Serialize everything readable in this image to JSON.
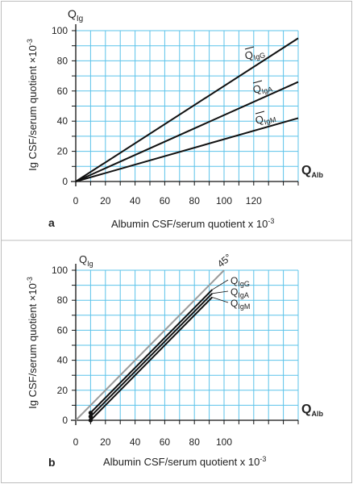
{
  "colors": {
    "grid": "#5bc3ea",
    "line": "#111111",
    "reference": "#9a9a9a",
    "frame": "#bdbdbd"
  },
  "chart_data": [
    {
      "panel": "a",
      "type": "line",
      "y_corner_label": "Q",
      "y_corner_sub": "Ig",
      "ylabel": "Ig CSF/serum quotient  ×10",
      "ylabel_exp": "-3",
      "xlabel": "Albumin CSF/serum quotient  x 10",
      "xlabel_exp": "-3",
      "x_axis_tag": "Q",
      "x_axis_tag_sub": "Alb",
      "xlim": [
        0,
        150
      ],
      "ylim": [
        0,
        100
      ],
      "x_ticks": [
        0,
        20,
        40,
        60,
        80,
        100,
        120
      ],
      "y_ticks": [
        0,
        20,
        40,
        60,
        80,
        100
      ],
      "grid": true,
      "series": [
        {
          "name": "Q",
          "name_sub": "IgG",
          "x": [
            0,
            150
          ],
          "y": [
            0,
            95
          ]
        },
        {
          "name": "Q",
          "name_sub": "IgA",
          "x": [
            0,
            150
          ],
          "y": [
            0,
            66
          ]
        },
        {
          "name": "Q",
          "name_sub": "IgM",
          "x": [
            0,
            150
          ],
          "y": [
            0,
            42
          ]
        }
      ]
    },
    {
      "panel": "b",
      "type": "line",
      "y_corner_label": "Q",
      "y_corner_sub": "Ig",
      "ylabel": "Ig CSF/serum quotient  ×10",
      "ylabel_exp": "-3",
      "xlabel": "Albumin CSF/serum quotient  x 10",
      "xlabel_exp": "-3",
      "x_axis_tag": "Q",
      "x_axis_tag_sub": "Alb",
      "reference_label": "45°",
      "xlim": [
        0,
        150
      ],
      "ylim": [
        0,
        100
      ],
      "x_ticks": [
        0,
        20,
        40,
        60,
        80,
        100
      ],
      "y_ticks": [
        0,
        20,
        40,
        60,
        80,
        100
      ],
      "grid": true,
      "reference_line": {
        "x": [
          0,
          100
        ],
        "y": [
          0,
          100
        ]
      },
      "series": [
        {
          "name": "Q",
          "name_sub": "IgG",
          "x": [
            10,
            92
          ],
          "y": [
            5,
            87
          ]
        },
        {
          "name": "Q",
          "name_sub": "IgA",
          "x": [
            10,
            92
          ],
          "y": [
            2.5,
            84.5
          ]
        },
        {
          "name": "Q",
          "name_sub": "IgM",
          "x": [
            10,
            92
          ],
          "y": [
            0,
            82
          ]
        }
      ]
    }
  ]
}
